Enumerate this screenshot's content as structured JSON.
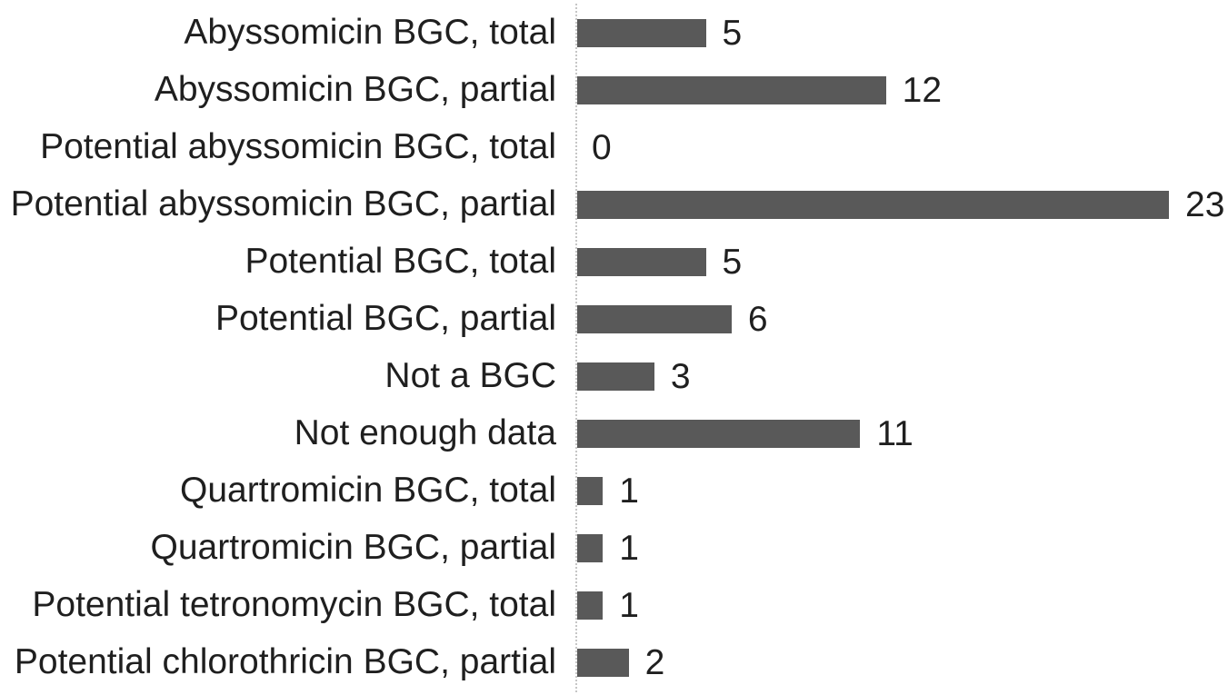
{
  "chart_data": {
    "type": "bar",
    "orientation": "horizontal",
    "title": "",
    "xlabel": "",
    "ylabel": "",
    "categories": [
      "Abyssomicin BGC, total",
      "Abyssomicin BGC, partial",
      "Potential abyssomicin BGC, total",
      "Potential abyssomicin BGC, partial",
      "Potential BGC, total",
      "Potential BGC, partial",
      "Not a BGC",
      "Not enough data",
      "Quartromicin BGC, total",
      "Quartromicin BGC, partial",
      "Potential tetronomycin BGC, total",
      "Potential chlorothricin BGC, partial"
    ],
    "values": [
      5,
      12,
      0,
      23,
      5,
      6,
      3,
      11,
      1,
      1,
      1,
      2
    ],
    "xlim": [
      0,
      23
    ],
    "grid": false,
    "legend": false,
    "data_labels": true,
    "bar_color": "#595959",
    "axis_line_color": "#c6c6c6",
    "text_color": "#1f1f1f",
    "background_color": "#ffffff"
  }
}
